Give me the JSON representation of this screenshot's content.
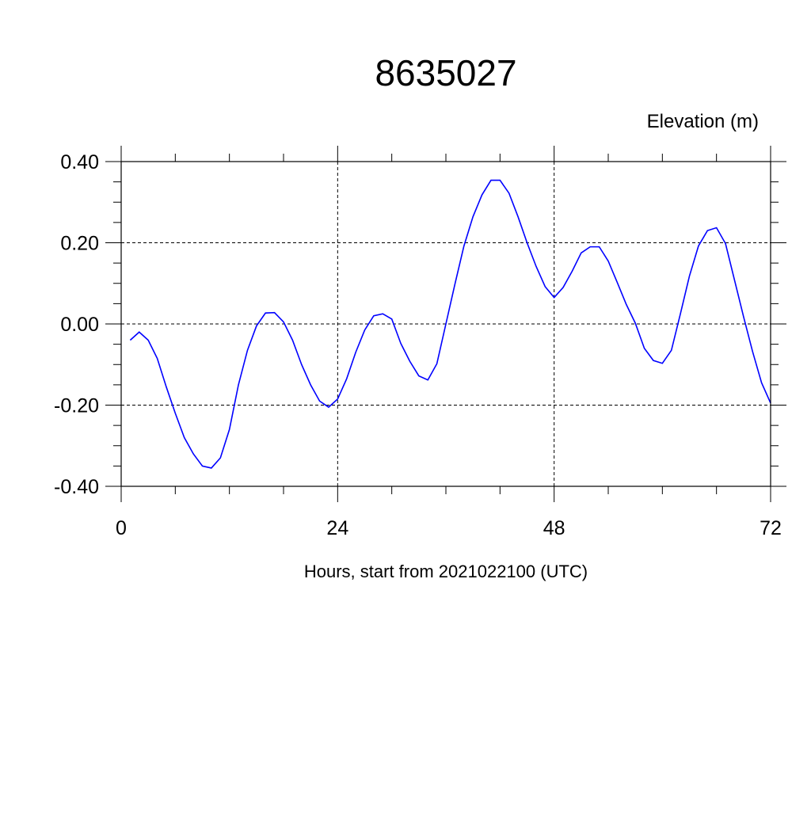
{
  "chart_data": {
    "type": "line",
    "title": "8635027",
    "ylabel": "Elevation (m)",
    "xlabel": "Hours, start from 2021022100 (UTC)",
    "xlim": [
      0,
      72
    ],
    "ylim": [
      -0.4,
      0.4
    ],
    "x_ticks": [
      0,
      24,
      48,
      72
    ],
    "x_tick_labels": [
      "0",
      "24",
      "48",
      "72"
    ],
    "y_ticks": [
      -0.4,
      -0.2,
      0.0,
      0.2,
      0.4
    ],
    "y_tick_labels": [
      "-0.40",
      "-0.20",
      "0.00",
      "0.20",
      "0.40"
    ],
    "grid": true,
    "colors": {
      "series": "#0000ff"
    },
    "series": [
      {
        "x": [
          1,
          2,
          3,
          4,
          5,
          6,
          7,
          8,
          9,
          10,
          11,
          12,
          13,
          14,
          15,
          16,
          17,
          18,
          19,
          20,
          21,
          22,
          23,
          24,
          25,
          26,
          27,
          28,
          29,
          30,
          31,
          32,
          33,
          34,
          35,
          36,
          37,
          38,
          39,
          40,
          41,
          42,
          43,
          44,
          45,
          46,
          47,
          48,
          49,
          50,
          51,
          52,
          53,
          54,
          55,
          56,
          57,
          58,
          59,
          60,
          61,
          62,
          63,
          64,
          65,
          66,
          67,
          68,
          69,
          70,
          71,
          72
        ],
        "y": [
          -0.04,
          -0.02,
          -0.04,
          -0.085,
          -0.155,
          -0.22,
          -0.28,
          -0.32,
          -0.35,
          -0.355,
          -0.33,
          -0.26,
          -0.15,
          -0.065,
          -0.005,
          0.027,
          0.028,
          0.005,
          -0.04,
          -0.1,
          -0.15,
          -0.19,
          -0.205,
          -0.185,
          -0.135,
          -0.07,
          -0.015,
          0.02,
          0.025,
          0.012,
          -0.048,
          -0.092,
          -0.128,
          -0.138,
          -0.098,
          0.0,
          0.098,
          0.192,
          0.264,
          0.318,
          0.354,
          0.354,
          0.322,
          0.264,
          0.2,
          0.142,
          0.092,
          0.065,
          0.09,
          0.13,
          0.175,
          0.19,
          0.19,
          0.155,
          0.102,
          0.048,
          0.002,
          -0.06,
          -0.09,
          -0.097,
          -0.065,
          0.025,
          0.118,
          0.192,
          0.23,
          0.237,
          0.198,
          0.108,
          0.018,
          -0.068,
          -0.145,
          -0.195
        ]
      }
    ]
  }
}
